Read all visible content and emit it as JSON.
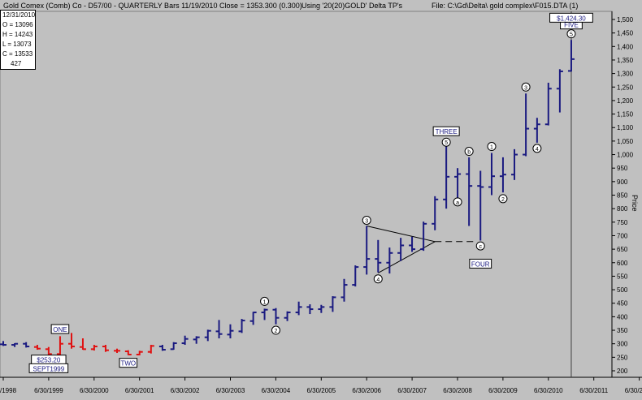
{
  "header": {
    "symbol": "Gold Comex (Comb) Co - D57/00  -  QUARTERLY Bars  11/19/2010 Close = 1353.300 (0.300)",
    "using": "Using '20(20)GOLD' Delta TP's",
    "file": "File:  C:\\Gd\\Delta\\ gold complex\\F015.DTA (1)"
  },
  "info_box": {
    "date": "12/31/2010",
    "open": "O = 13096",
    "high": "H = 14243",
    "low": "L = 13073",
    "close": "C = 13533",
    "count": "427"
  },
  "colors": {
    "background": "#c0c0c0",
    "bar_blue": "#1a1a80",
    "bar_red": "#e01010",
    "grid": "#000000"
  },
  "chart_data": {
    "type": "ohlc",
    "title": "Gold Comex (Comb) Co - D57/00 - QUARTERLY Bars",
    "ylabel": "Price",
    "ylim": [
      185,
      1510
    ],
    "xlim": [
      "1998-06-30",
      "2012-06-30"
    ],
    "x_ticks": [
      "/1998",
      "6/30/1999",
      "6/30/2000",
      "6/30/2001",
      "6/30/2002",
      "6/30/2003",
      "6/30/2004",
      "6/30/2005",
      "6/30/2006",
      "6/30/2007",
      "6/30/2008",
      "6/30/2009",
      "6/30/2010",
      "6/30/2011",
      "6/30/2012"
    ],
    "y_ticks": [
      200,
      250,
      300,
      350,
      400,
      450,
      500,
      550,
      600,
      650,
      700,
      750,
      800,
      850,
      900,
      950,
      1000,
      1050,
      1100,
      1150,
      1200,
      1250,
      1300,
      1350,
      1400,
      1450,
      1500
    ],
    "y_tick_labels": [
      "200",
      "250",
      "300",
      "350",
      "400",
      "450",
      "500",
      "550",
      "600",
      "650",
      "700",
      "750",
      "800",
      "850",
      "900",
      "950",
      "1,000",
      "1,050",
      "1,100",
      "1,150",
      "1,200",
      "1,250",
      "1,300",
      "1,350",
      "1,400",
      "1,450",
      "1,500"
    ],
    "bars": [
      {
        "date": "1998-06-30",
        "o": 298,
        "h": 310,
        "l": 292,
        "c": 296,
        "color": "blue"
      },
      {
        "date": "1998-09-30",
        "o": 296,
        "h": 302,
        "l": 288,
        "c": 300,
        "color": "blue"
      },
      {
        "date": "1998-12-31",
        "o": 300,
        "h": 306,
        "l": 286,
        "c": 290,
        "color": "blue"
      },
      {
        "date": "1999-03-31",
        "o": 288,
        "h": 296,
        "l": 278,
        "c": 282,
        "color": "red"
      },
      {
        "date": "1999-06-30",
        "o": 280,
        "h": 288,
        "l": 256,
        "c": 262,
        "color": "red"
      },
      {
        "date": "1999-09-30",
        "o": 262,
        "h": 328,
        "l": 253.2,
        "c": 300,
        "color": "red"
      },
      {
        "date": "1999-12-31",
        "o": 300,
        "h": 340,
        "l": 282,
        "c": 290,
        "color": "red"
      },
      {
        "date": "2000-03-31",
        "o": 288,
        "h": 320,
        "l": 278,
        "c": 280,
        "color": "red"
      },
      {
        "date": "2000-06-30",
        "o": 280,
        "h": 296,
        "l": 275,
        "c": 290,
        "color": "red"
      },
      {
        "date": "2000-09-30",
        "o": 290,
        "h": 296,
        "l": 270,
        "c": 276,
        "color": "red"
      },
      {
        "date": "2000-12-31",
        "o": 274,
        "h": 282,
        "l": 266,
        "c": 274,
        "color": "red"
      },
      {
        "date": "2001-03-31",
        "o": 272,
        "h": 276,
        "l": 258,
        "c": 260,
        "color": "red"
      },
      {
        "date": "2001-06-30",
        "o": 260,
        "h": 274,
        "l": 257,
        "c": 270,
        "color": "red"
      },
      {
        "date": "2001-09-30",
        "o": 270,
        "h": 296,
        "l": 264,
        "c": 292,
        "color": "red"
      },
      {
        "date": "2001-12-31",
        "o": 290,
        "h": 296,
        "l": 274,
        "c": 278,
        "color": "blue"
      },
      {
        "date": "2002-03-31",
        "o": 280,
        "h": 306,
        "l": 278,
        "c": 302,
        "color": "blue"
      },
      {
        "date": "2002-06-30",
        "o": 302,
        "h": 330,
        "l": 296,
        "c": 318,
        "color": "blue"
      },
      {
        "date": "2002-09-30",
        "o": 316,
        "h": 328,
        "l": 300,
        "c": 324,
        "color": "blue"
      },
      {
        "date": "2002-12-31",
        "o": 324,
        "h": 352,
        "l": 310,
        "c": 348,
        "color": "blue"
      },
      {
        "date": "2003-03-31",
        "o": 346,
        "h": 388,
        "l": 320,
        "c": 336,
        "color": "blue"
      },
      {
        "date": "2003-06-30",
        "o": 334,
        "h": 372,
        "l": 320,
        "c": 348,
        "color": "blue"
      },
      {
        "date": "2003-09-30",
        "o": 346,
        "h": 392,
        "l": 340,
        "c": 386,
        "color": "blue"
      },
      {
        "date": "2003-12-31",
        "o": 384,
        "h": 418,
        "l": 370,
        "c": 416,
        "color": "blue"
      },
      {
        "date": "2004-03-31",
        "o": 416,
        "h": 430,
        "l": 388,
        "c": 426,
        "color": "blue"
      },
      {
        "date": "2004-06-30",
        "o": 426,
        "h": 432,
        "l": 372,
        "c": 396,
        "color": "blue"
      },
      {
        "date": "2004-09-30",
        "o": 396,
        "h": 420,
        "l": 384,
        "c": 416,
        "color": "blue"
      },
      {
        "date": "2004-12-31",
        "o": 416,
        "h": 456,
        "l": 406,
        "c": 436,
        "color": "blue"
      },
      {
        "date": "2005-03-31",
        "o": 436,
        "h": 446,
        "l": 410,
        "c": 428,
        "color": "blue"
      },
      {
        "date": "2005-06-30",
        "o": 428,
        "h": 444,
        "l": 414,
        "c": 436,
        "color": "blue"
      },
      {
        "date": "2005-09-30",
        "o": 436,
        "h": 476,
        "l": 418,
        "c": 472,
        "color": "blue"
      },
      {
        "date": "2005-12-31",
        "o": 472,
        "h": 540,
        "l": 456,
        "c": 518,
        "color": "blue"
      },
      {
        "date": "2006-03-31",
        "o": 518,
        "h": 590,
        "l": 512,
        "c": 584,
        "color": "blue"
      },
      {
        "date": "2006-06-30",
        "o": 584,
        "h": 736,
        "l": 556,
        "c": 614,
        "color": "blue"
      },
      {
        "date": "2006-09-30",
        "o": 614,
        "h": 684,
        "l": 564,
        "c": 600,
        "color": "blue"
      },
      {
        "date": "2006-12-31",
        "o": 600,
        "h": 656,
        "l": 560,
        "c": 636,
        "color": "blue"
      },
      {
        "date": "2007-03-31",
        "o": 636,
        "h": 692,
        "l": 606,
        "c": 664,
        "color": "blue"
      },
      {
        "date": "2007-06-30",
        "o": 664,
        "h": 696,
        "l": 640,
        "c": 650,
        "color": "blue"
      },
      {
        "date": "2007-09-30",
        "o": 650,
        "h": 752,
        "l": 644,
        "c": 744,
        "color": "blue"
      },
      {
        "date": "2007-12-31",
        "o": 744,
        "h": 846,
        "l": 720,
        "c": 834,
        "color": "blue"
      },
      {
        "date": "2008-03-31",
        "o": 834,
        "h": 1032,
        "l": 800,
        "c": 918,
        "color": "blue"
      },
      {
        "date": "2008-06-30",
        "o": 918,
        "h": 950,
        "l": 840,
        "c": 928,
        "color": "blue"
      },
      {
        "date": "2008-09-30",
        "o": 928,
        "h": 990,
        "l": 736,
        "c": 884,
        "color": "blue"
      },
      {
        "date": "2008-12-31",
        "o": 884,
        "h": 940,
        "l": 682,
        "c": 880,
        "color": "blue"
      },
      {
        "date": "2009-03-31",
        "o": 880,
        "h": 1006,
        "l": 850,
        "c": 920,
        "color": "blue"
      },
      {
        "date": "2009-06-30",
        "o": 920,
        "h": 990,
        "l": 860,
        "c": 926,
        "color": "blue"
      },
      {
        "date": "2009-09-30",
        "o": 926,
        "h": 1020,
        "l": 906,
        "c": 1000,
        "color": "blue"
      },
      {
        "date": "2009-12-31",
        "o": 1000,
        "h": 1226,
        "l": 994,
        "c": 1096,
        "color": "blue"
      },
      {
        "date": "2010-03-31",
        "o": 1096,
        "h": 1136,
        "l": 1044,
        "c": 1112,
        "color": "blue"
      },
      {
        "date": "2010-06-30",
        "o": 1112,
        "h": 1266,
        "l": 1108,
        "c": 1244,
        "color": "blue"
      },
      {
        "date": "2010-09-30",
        "o": 1244,
        "h": 1316,
        "l": 1156,
        "c": 1308,
        "color": "blue"
      },
      {
        "date": "2010-12-31",
        "o": 1309.6,
        "h": 1424.3,
        "l": 1307.3,
        "c": 1353.3,
        "color": "blue"
      }
    ],
    "annotations": {
      "boxes": [
        {
          "text": "ONE",
          "date": "1999-09-30",
          "price": 353
        },
        {
          "text": "$253.20",
          "date": "1999-06-30",
          "price": 240
        },
        {
          "text": "SEPT1999",
          "date": "1999-06-30",
          "price": 208
        },
        {
          "text": "TWO",
          "date": "2001-03-31",
          "price": 228
        },
        {
          "text": "THREE",
          "date": "2008-03-31",
          "price": 1085
        },
        {
          "text": "FOUR",
          "date": "2008-12-31",
          "price": 595
        },
        {
          "text": "FIVE",
          "date": "2010-12-31",
          "price": 1480
        },
        {
          "text": "$1,424.30",
          "date": "2010-12-31",
          "price": 1505
        }
      ],
      "circles": [
        {
          "text": "1",
          "date": "2004-03-31",
          "price": 457
        },
        {
          "text": "2",
          "date": "2004-06-30",
          "price": 350
        },
        {
          "text": "3",
          "date": "2006-06-30",
          "price": 757
        },
        {
          "text": "4",
          "date": "2006-09-30",
          "price": 540
        },
        {
          "text": "5",
          "date": "2008-03-31",
          "price": 1046
        },
        {
          "text": "a",
          "date": "2008-06-30",
          "price": 825
        },
        {
          "text": "b",
          "date": "2008-09-30",
          "price": 1012
        },
        {
          "text": "c",
          "date": "2008-12-31",
          "price": 662
        },
        {
          "text": "1",
          "date": "2009-03-31",
          "price": 1030
        },
        {
          "text": "2",
          "date": "2009-06-30",
          "price": 837
        },
        {
          "text": "3",
          "date": "2009-12-31",
          "price": 1250
        },
        {
          "text": "4",
          "date": "2010-03-31",
          "price": 1023
        },
        {
          "text": "5",
          "date": "2010-12-31",
          "price": 1447
        }
      ]
    }
  }
}
